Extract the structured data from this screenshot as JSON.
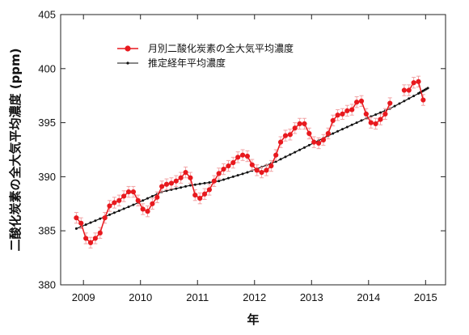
{
  "chart_data": {
    "type": "line",
    "ylabel": "二酸化炭素の全大気平均濃度 (ppm)",
    "xlabel": "年",
    "xlim": [
      2008.6,
      2015.35
    ],
    "ylim": [
      380,
      405
    ],
    "x_ticks": [
      2009,
      2010,
      2011,
      2012,
      2013,
      2014,
      2015
    ],
    "x_tick_labels": [
      "2009",
      "2010",
      "2011",
      "2012",
      "2013",
      "2014",
      "2015"
    ],
    "y_ticks": [
      380,
      385,
      390,
      395,
      400,
      405
    ],
    "y_tick_labels": [
      "380",
      "385",
      "390",
      "395",
      "400",
      "405"
    ],
    "legend_position": "top-left",
    "series": [
      {
        "name": "月別二酸化炭素の全大気平均濃度",
        "color": "#e8191e",
        "marker": "circle",
        "error_bars": true,
        "error": 0.5,
        "x": [
          2008.875,
          2008.958,
          2009.042,
          2009.125,
          2009.208,
          2009.292,
          2009.375,
          2009.458,
          2009.542,
          2009.625,
          2009.708,
          2009.792,
          2009.875,
          2009.958,
          2010.042,
          2010.125,
          2010.208,
          2010.292,
          2010.375,
          2010.458,
          2010.542,
          2010.625,
          2010.708,
          2010.792,
          2010.875,
          2010.958,
          2011.042,
          2011.125,
          2011.208,
          2011.292,
          2011.375,
          2011.458,
          2011.542,
          2011.625,
          2011.708,
          2011.792,
          2011.875,
          2011.958,
          2012.042,
          2012.125,
          2012.208,
          2012.292,
          2012.375,
          2012.458,
          2012.542,
          2012.625,
          2012.708,
          2012.792,
          2012.875,
          2012.958,
          2013.042,
          2013.125,
          2013.208,
          2013.292,
          2013.375,
          2013.458,
          2013.542,
          2013.625,
          2013.708,
          2013.792,
          2013.875,
          2013.958,
          2014.042,
          2014.125,
          2014.208,
          2014.292,
          2014.375,
          2014.625,
          2014.708,
          2014.792,
          2014.875,
          2014.958
        ],
        "y": [
          386.2,
          385.7,
          384.3,
          383.9,
          384.3,
          384.8,
          386.2,
          387.3,
          387.6,
          387.8,
          388.2,
          388.6,
          388.6,
          387.8,
          387.0,
          386.8,
          387.5,
          388.1,
          389.1,
          389.3,
          389.4,
          389.6,
          389.9,
          390.4,
          389.9,
          388.3,
          388.0,
          388.4,
          388.8,
          389.6,
          390.3,
          390.7,
          391.0,
          391.3,
          391.8,
          392.0,
          391.9,
          391.1,
          390.6,
          390.4,
          390.6,
          391.0,
          392.0,
          393.2,
          393.8,
          393.9,
          394.5,
          394.9,
          394.9,
          394.0,
          393.2,
          393.1,
          393.4,
          394.0,
          395.2,
          395.7,
          395.8,
          396.1,
          396.2,
          396.9,
          397.0,
          395.8,
          395.0,
          394.9,
          395.3,
          395.8,
          396.8,
          398.0,
          398.0,
          398.7,
          398.8,
          397.1
        ]
      },
      {
        "name": "推定経年平均濃度",
        "color": "#111111",
        "marker": "dot",
        "x": [
          2008.875,
          2009.375,
          2009.875,
          2010.375,
          2010.875,
          2011.375,
          2011.875,
          2012.375,
          2012.875,
          2013.375,
          2013.875,
          2014.375,
          2014.875,
          2015.04
        ],
        "y": [
          385.2,
          386.3,
          387.4,
          388.6,
          389.2,
          389.6,
          390.4,
          391.4,
          392.7,
          394.0,
          395.2,
          396.3,
          397.7,
          398.2
        ]
      }
    ]
  }
}
